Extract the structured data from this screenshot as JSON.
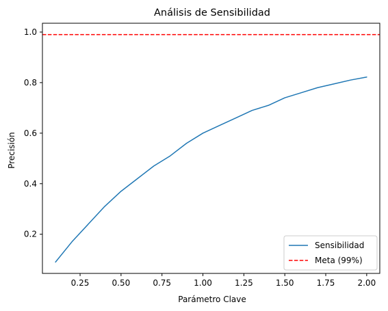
{
  "chart_data": {
    "type": "line",
    "title": "Análisis de Sensibilidad",
    "xlabel": "Parámetro Clave",
    "ylabel": "Precisión",
    "xlim": [
      0.02,
      2.08
    ],
    "ylim": [
      0.045,
      1.035
    ],
    "xticks": [
      0.25,
      0.5,
      0.75,
      1.0,
      1.25,
      1.5,
      1.75,
      2.0
    ],
    "xtick_labels": [
      "0.25",
      "0.50",
      "0.75",
      "1.00",
      "1.25",
      "1.50",
      "1.75",
      "2.00"
    ],
    "yticks": [
      0.2,
      0.4,
      0.6,
      0.8,
      1.0
    ],
    "ytick_labels": [
      "0.2",
      "0.4",
      "0.6",
      "0.8",
      "1.0"
    ],
    "grid": false,
    "legend_position": "lower right",
    "series": [
      {
        "name": "Sensibilidad",
        "color": "#1f77b4",
        "style": "solid",
        "x": [
          0.1,
          0.2,
          0.3,
          0.4,
          0.5,
          0.6,
          0.7,
          0.8,
          0.9,
          1.0,
          1.1,
          1.2,
          1.3,
          1.4,
          1.5,
          1.6,
          1.7,
          1.8,
          1.9,
          2.0
        ],
        "y": [
          0.09,
          0.17,
          0.24,
          0.31,
          0.37,
          0.42,
          0.47,
          0.51,
          0.56,
          0.6,
          0.63,
          0.66,
          0.69,
          0.71,
          0.74,
          0.76,
          0.78,
          0.795,
          0.81,
          0.822
        ]
      },
      {
        "name": "Meta (99%)",
        "color": "#ff0000",
        "style": "dashed",
        "hline": 0.99
      }
    ]
  }
}
